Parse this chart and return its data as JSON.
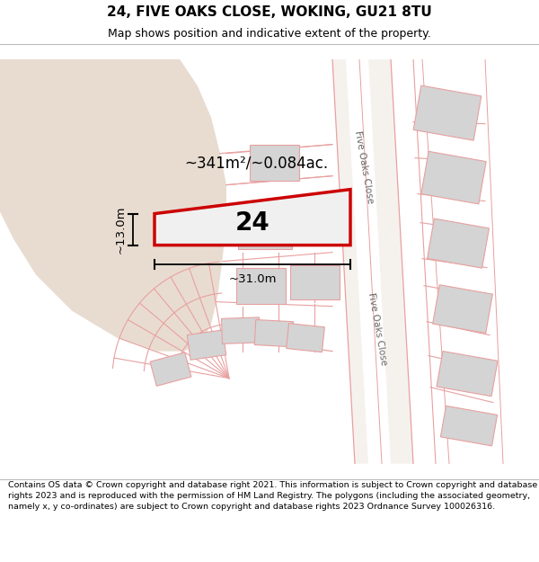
{
  "title": "24, FIVE OAKS CLOSE, WOKING, GU21 8TU",
  "subtitle": "Map shows position and indicative extent of the property.",
  "footer": "Contains OS data © Crown copyright and database right 2021. This information is subject to Crown copyright and database rights 2023 and is reproduced with the permission of HM Land Registry. The polygons (including the associated geometry, namely x, y co-ordinates) are subject to Crown copyright and database rights 2023 Ordnance Survey 100026316.",
  "map_bg": "#ffffff",
  "tan_fill": "#e8dcd0",
  "subject_edge": "#cc0000",
  "area_label": "~341m²/~0.084ac.",
  "number_label": "24",
  "dim_h": "~13.0m",
  "dim_w": "~31.0m",
  "road_label": "Five Oaks Close",
  "line_color": "#e8a0a0",
  "building_fill": "#d4d4d4",
  "building_edge": "#e8a0a0",
  "road_fill": "#f0ebe4",
  "title_fontsize": 11,
  "subtitle_fontsize": 9,
  "footer_fontsize": 6.8
}
